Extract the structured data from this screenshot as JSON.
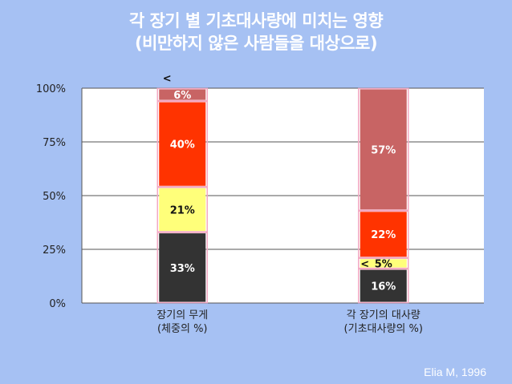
{
  "title": {
    "line1": "각 장기 별 기초대사량에 미치는 영향",
    "line2": "(비만하지 않은 사람들을 대상으로)"
  },
  "credit": "Elia M, 1996",
  "colors": {
    "background": "#a6c1f3",
    "plot": "#ffffff",
    "grid": "#555555",
    "seg_dark": "#333333",
    "seg_yellow": "#ffff7a",
    "seg_red": "#ff3300",
    "seg_rose": "#c86464",
    "highlight": "#f3a9c3"
  },
  "chart_data": {
    "type": "bar",
    "stacked": true,
    "percent_axis": true,
    "title": "",
    "xlabel": "",
    "ylabel": "",
    "ylim": [
      0,
      100
    ],
    "yticks": [
      "0%",
      "25%",
      "50%",
      "75%",
      "100%"
    ],
    "grid": true,
    "legend": "none",
    "categories": [
      [
        "장기의 무게",
        "(체중의 %)"
      ],
      [
        "각 장기의 대사량",
        "(기초대사량의 %)"
      ]
    ],
    "series": [
      {
        "values": [
          33,
          16
        ],
        "labels": [
          "33%",
          "16%"
        ],
        "color": "#333333",
        "label_color": "#ffffff"
      },
      {
        "values": [
          21,
          5
        ],
        "labels": [
          "21%",
          "5%"
        ],
        "color": "#ffff7a",
        "label_color": "#111111"
      },
      {
        "values": [
          40,
          22
        ],
        "labels": [
          "40%",
          "22%"
        ],
        "color": "#ff3300",
        "label_color": "#ffffff"
      },
      {
        "values": [
          6,
          57
        ],
        "labels": [
          "6%",
          "57%"
        ],
        "color": "#c86464",
        "label_color": "#ffffff"
      }
    ],
    "annotations": [
      "<",
      "<"
    ]
  }
}
